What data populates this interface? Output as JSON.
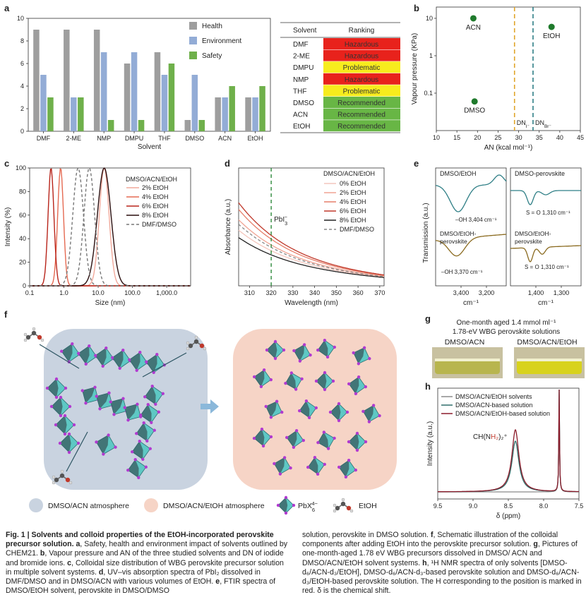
{
  "panels": {
    "a": {
      "label": "a",
      "chart_data": {
        "type": "bar",
        "categories": [
          "DMF",
          "2-ME",
          "NMP",
          "DMPU",
          "THF",
          "DMSO",
          "ACN",
          "EtOH"
        ],
        "series": [
          {
            "name": "Health",
            "color": "#9e9e9e",
            "values": [
              9,
              9,
              9,
              6,
              7,
              1,
              3,
              3
            ]
          },
          {
            "name": "Environment",
            "color": "#93acd6",
            "values": [
              5,
              3,
              7,
              7,
              5,
              5,
              3,
              3
            ]
          },
          {
            "name": "Safety",
            "color": "#6fb04b",
            "values": [
              3,
              3,
              1,
              1,
              6,
              1,
              4,
              4
            ]
          }
        ],
        "xlabel": "Solvent",
        "ylabel": "",
        "ylim": [
          0,
          10
        ],
        "yticks": [
          0,
          2,
          4,
          6,
          8,
          10
        ],
        "legend": "top-right"
      },
      "table": {
        "headers": [
          "Solvent",
          "Ranking"
        ],
        "rows": [
          {
            "solvent": "DMF",
            "ranking": "Hazardous",
            "color": "#e8221c"
          },
          {
            "solvent": "2-ME",
            "ranking": "Hazardous",
            "color": "#e8221c"
          },
          {
            "solvent": "DMPU",
            "ranking": "Problematic",
            "color": "#f7ec1d"
          },
          {
            "solvent": "NMP",
            "ranking": "Hazardous",
            "color": "#e8221c"
          },
          {
            "solvent": "THF",
            "ranking": "Problematic",
            "color": "#f7ec1d"
          },
          {
            "solvent": "DMSO",
            "ranking": "Recommended",
            "color": "#68b645"
          },
          {
            "solvent": "ACN",
            "ranking": "Recommended",
            "color": "#68b645"
          },
          {
            "solvent": "EtOH",
            "ranking": "Recommended",
            "color": "#68b645"
          }
        ]
      }
    },
    "b": {
      "label": "b",
      "chart_data": {
        "type": "scatter",
        "points": [
          {
            "name": "ACN",
            "x": 19,
            "y": 10
          },
          {
            "name": "EtOH",
            "x": 38,
            "y": 5.9
          },
          {
            "name": "DMSO",
            "x": 19.3,
            "y": 0.06
          }
        ],
        "xlabel": "AN (kcal mol⁻¹)",
        "ylabel": "Vapour pressure (KPa)",
        "xlim": [
          10,
          45
        ],
        "xticks": [
          10,
          15,
          20,
          25,
          30,
          35,
          40,
          45
        ],
        "ylim_log": [
          0.01,
          20
        ],
        "yticks": [
          0.1,
          1,
          10
        ],
        "yticklabels": [
          "0.1",
          "1",
          "10"
        ],
        "point_color": "#1f7a2c",
        "vlines": [
          {
            "x": 29,
            "label": "DN",
            "sub": "I⁻",
            "color": "#e0a52a"
          },
          {
            "x": 33.5,
            "label": "DN",
            "sub": "Br⁻",
            "color": "#2f7f86"
          }
        ]
      }
    },
    "c": {
      "label": "c",
      "chart_data": {
        "type": "line",
        "x_scale": "log",
        "xlim": [
          0.1,
          5000
        ],
        "xticks": [
          0.1,
          1,
          10,
          100,
          1000
        ],
        "xticklabels": [
          "0.1",
          "1.0",
          "10.0",
          "100.0",
          "1,000.0"
        ],
        "ylim": [
          0,
          100
        ],
        "yticks": [
          0,
          20,
          40,
          60,
          80,
          100
        ],
        "xlabel": "Size (nm)",
        "ylabel": "Intensity (%)",
        "legend_title": "DMSO/ACN/EtOH",
        "series": [
          {
            "name": "2% EtOH",
            "color": "#f1a89a",
            "dash": false,
            "peak": 15,
            "width": 0.2
          },
          {
            "name": "4% EtOH",
            "color": "#e56a52",
            "dash": false,
            "peak": 0.8,
            "width": 0.12
          },
          {
            "name": "6% EtOH",
            "color": "#b8241a",
            "dash": false,
            "peak": 0.42,
            "width": 0.12
          },
          {
            "name": "8% EtOH",
            "color": "#2a0d0d",
            "dash": false,
            "peak": 15,
            "width": 0.28
          },
          {
            "name": "DMF/DMSO",
            "color": "#777777",
            "dash": true,
            "peak": 2.6,
            "width": 0.22
          }
        ],
        "extra_dash_peak": 5.5
      }
    },
    "d": {
      "label": "d",
      "chart_data": {
        "type": "line",
        "xlim": [
          305,
          372
        ],
        "xticks": [
          310,
          320,
          330,
          340,
          350,
          360,
          370
        ],
        "xlabel": "Wavelength (nm)",
        "ylabel": "Absorbance (a.u.)",
        "legend_title": "DMSO/ACN/EtOH",
        "series": [
          {
            "name": "0% EtOH",
            "color": "#f4c6bd",
            "dash": false,
            "offset": 0.58
          },
          {
            "name": "2% EtOH",
            "color": "#f0a494",
            "dash": false,
            "offset": 0.72
          },
          {
            "name": "4% EtOH",
            "color": "#e67f6a",
            "dash": false,
            "offset": 0.86
          },
          {
            "name": "6% EtOH",
            "color": "#c0392b",
            "dash": false,
            "offset": 0.95
          },
          {
            "name": "8% EtOH",
            "color": "#222222",
            "dash": false,
            "offset": 0.48
          },
          {
            "name": "DMF/DMSO",
            "color": "#888888",
            "dash": true,
            "offset": 0.66
          }
        ],
        "annotation": {
          "x": 320,
          "text": "PbI",
          "sub": "3",
          "sup": "−",
          "color": "#2e8a3c"
        }
      }
    },
    "e": {
      "label": "e",
      "xlabel": "cm⁻¹",
      "ylabel": "Transmission (a.u.)",
      "left": {
        "title": "DMSO/EtOH",
        "xticks": [
          "3,400",
          "3,200"
        ],
        "top_label": "–OH 3,404 cm⁻¹",
        "mid_title": "DMSO/EtOH-perovskite",
        "bottom_label": "–OH 3,370 cm⁻¹",
        "top_color": "#2f7f86",
        "bottom_color": "#8a6a1f"
      },
      "right": {
        "title": "DMSO-perovskite",
        "xticks": [
          "1,400",
          "1,300"
        ],
        "top_label": "S = O 1,310 cm⁻¹",
        "mid_title": "DMSO/EtOH-perovskite",
        "bottom_label": "S = O 1,310 cm⁻¹",
        "top_color": "#2f7f86",
        "bottom_color": "#8a6a1f"
      }
    },
    "f": {
      "label": "f",
      "legend": [
        {
          "text": "DMSO/ACN atmosphere",
          "color": "#c9d3e0"
        },
        {
          "text": "DMSO/ACN/EtOH atmosphere",
          "color": "#f6d4c6"
        },
        {
          "text": "PbX",
          "sub": "6",
          "sup": "4−"
        },
        {
          "text": "EtOH"
        }
      ],
      "left_bg": "#c9d3e0",
      "right_bg": "#f6d4c6",
      "octa_color": "#5ec8c4",
      "octa_dark": "#3a5a5e",
      "atom_color": "#b13bd0"
    },
    "g": {
      "label": "g",
      "title_line1": "One-month aged 1.4 mmol ml⁻¹",
      "title_line2": "1.78-eV WBG perovskite solutions",
      "left_label": "DMSO/ACN",
      "right_label": "DMSO/ACN/EtOH"
    },
    "h": {
      "label": "h",
      "chart_data": {
        "type": "line",
        "xlim": [
          9.5,
          7.5
        ],
        "xticks": [
          9.5,
          9.0,
          8.5,
          8.0,
          7.5
        ],
        "xticklabels": [
          "9.5",
          "9.0",
          "8.5",
          "8.0",
          "7.5"
        ],
        "xlabel": "δ (ppm)",
        "ylabel": "Intensity (a.u.)",
        "series": [
          {
            "name": "DMSO/ACN/EtOH solvents",
            "color": "#8b8b8b"
          },
          {
            "name": "DMSO/ACN-based solution",
            "color": "#2f6e6a"
          },
          {
            "name": "DMSO/ACN/EtOH-based solution",
            "color": "#8b1a2a"
          }
        ],
        "annotation": "CH(NH₂)₂⁺",
        "annotation_highlight": "H₂"
      }
    }
  },
  "caption": {
    "col1": [
      {
        "bold": true,
        "text": "Fig. 1 | Solvents and colloid properties of the EtOH-incorporated perovskite precursor solution. "
      },
      {
        "bold": true,
        "text": "a"
      },
      {
        "bold": false,
        "text": ", Safety, health and environment impact of solvents outlined by CHEM21. "
      },
      {
        "bold": true,
        "text": "b"
      },
      {
        "bold": false,
        "text": ", Vapour pressure and AN of the three studied solvents and DN of iodide and bromide ions. "
      },
      {
        "bold": true,
        "text": "c"
      },
      {
        "bold": false,
        "text": ", Colloidal size distribution of WBG perovskite precursor solution in multiple solvent systems. "
      },
      {
        "bold": true,
        "text": "d"
      },
      {
        "bold": false,
        "text": ", UV–vis absorption spectra of PbI₂ dissolved in DMF/DMSO and in DMSO/ACN with various volumes of EtOH. "
      },
      {
        "bold": true,
        "text": "e"
      },
      {
        "bold": false,
        "text": ", FTIR spectra of DMSO/EtOH solvent, perovskite in DMSO/DMSO"
      }
    ],
    "col2": [
      {
        "bold": false,
        "text": "solution, perovskite in DMSO solution. "
      },
      {
        "bold": true,
        "text": "f"
      },
      {
        "bold": false,
        "text": ", Schematic illustration of the colloidal components after adding EtOH into the perovskite precursor solution. "
      },
      {
        "bold": true,
        "text": "g"
      },
      {
        "bold": false,
        "text": ", Pictures of one-month-aged 1.78 eV WBG precursors dissolved in DMSO/ ACN and DMSO/ACN/EtOH solvent systems. "
      },
      {
        "bold": true,
        "text": "h"
      },
      {
        "bold": false,
        "text": ", ¹H NMR spectra of only solvents [DMSO-d₆/ACN-d₃/EtOH], DMSO-d₆/ACN-d₃-based perovskite solution and DMSO-d₆/ACN-d₃/EtOH-based perovskite solution. The H corresponding to the position is marked in red. δ is the chemical shift."
      }
    ]
  }
}
